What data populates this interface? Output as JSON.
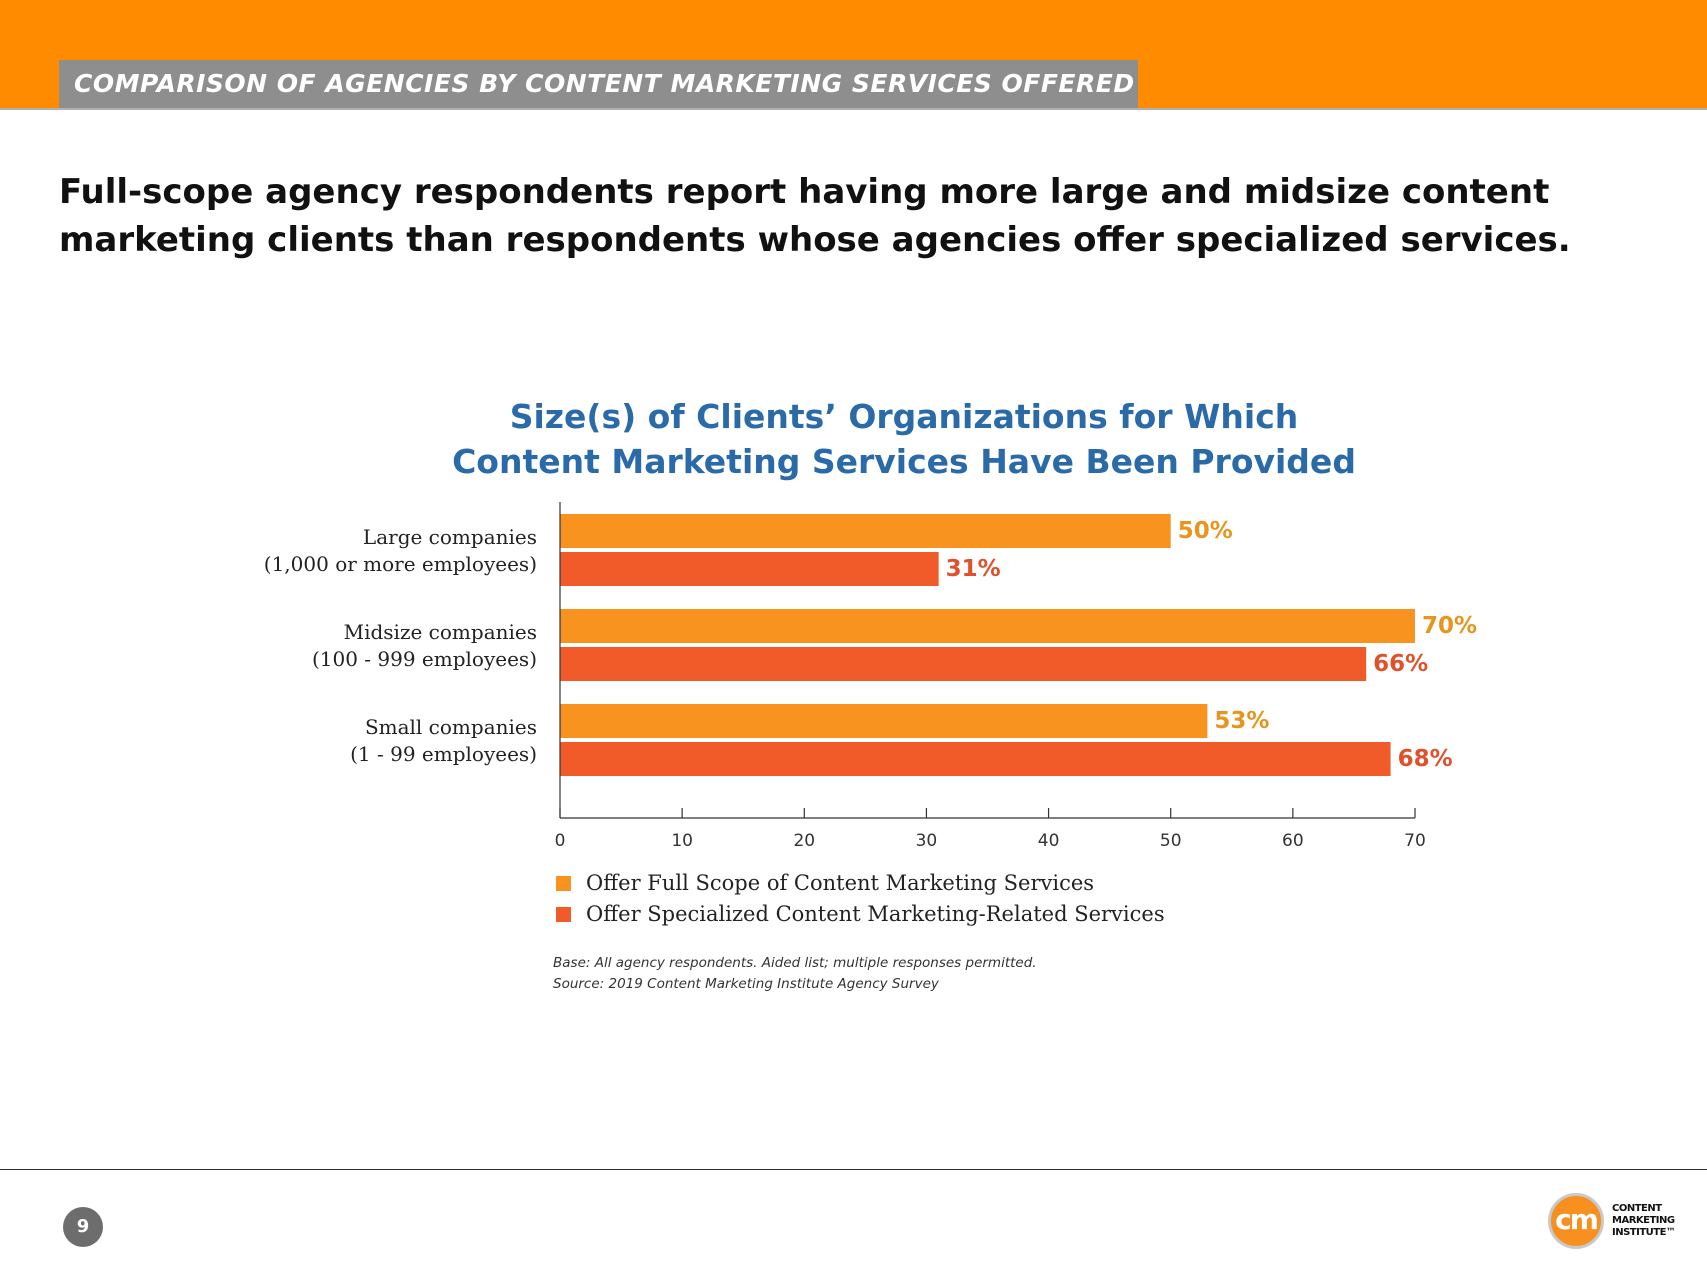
{
  "header": {
    "section_title": "COMPARISON OF AGENCIES BY CONTENT MARKETING SERVICES OFFERED",
    "headline": "Full-scope agency respondents report having more large and midsize content marketing clients than respondents whose agencies offer specialized services."
  },
  "chart_data": {
    "type": "bar",
    "orientation": "horizontal",
    "title": "Size(s) of Clients’ Organizations for Which Content Marketing Services Have Been Provided",
    "title_lines": [
      "Size(s) of Clients’ Organizations for Which",
      "Content Marketing Services Have Been Provided"
    ],
    "categories": [
      [
        "Large companies",
        "(1,000 or more employees)"
      ],
      [
        "Midsize companies",
        "(100 - 999 employees)"
      ],
      [
        "Small companies",
        "(1 - 99 employees)"
      ]
    ],
    "series": [
      {
        "name": "Offer Full Scope of Content Marketing Services",
        "color": "#f7931e",
        "values": [
          50,
          70,
          53
        ],
        "labels": [
          "50%",
          "70%",
          "53%"
        ]
      },
      {
        "name": "Offer Specialized Content Marketing-Related Services",
        "color": "#f15a29",
        "values": [
          31,
          66,
          68
        ],
        "labels": [
          "31%",
          "66%",
          "68%"
        ]
      }
    ],
    "xlim": [
      0,
      70
    ],
    "xticks": [
      0,
      10,
      20,
      30,
      40,
      50,
      60,
      70
    ],
    "xlabel": "",
    "ylabel": "",
    "grid": false,
    "legend_position": "bottom-left",
    "label_colors": [
      "#e8951e",
      "#e0502a"
    ],
    "title_color": "#2a6aa8"
  },
  "notes": {
    "base": "Base: All agency respondents. Aided list; multiple responses permitted.",
    "source": "Source: 2019 Content Marketing Institute Agency Survey"
  },
  "footer": {
    "page_number": "9",
    "logo_mark": "cm",
    "logo_text": [
      "CONTENT",
      "MARKETING",
      "INSTITUTE™"
    ]
  }
}
